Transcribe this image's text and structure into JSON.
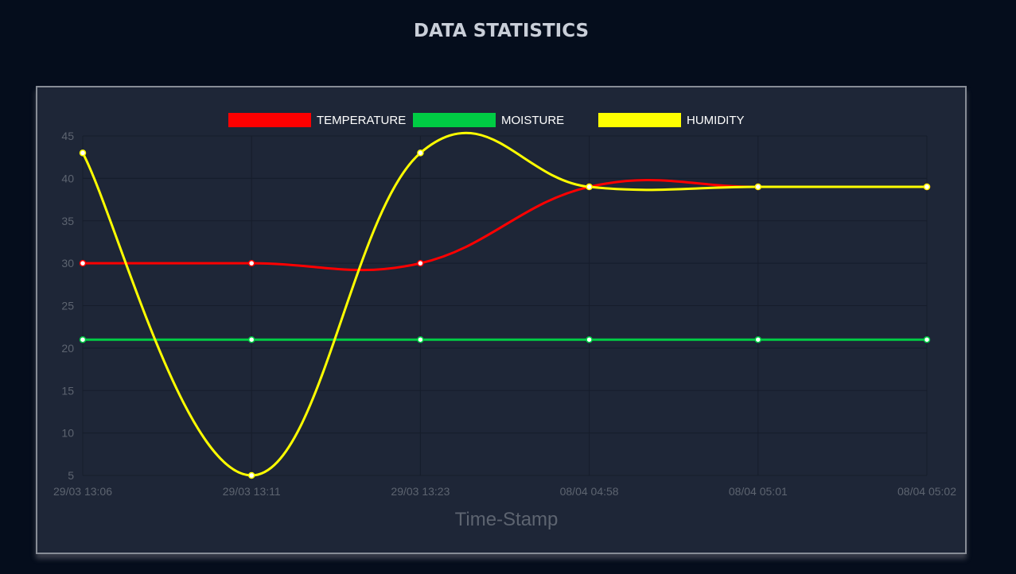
{
  "page": {
    "title": "DATA STATISTICS"
  },
  "colors": {
    "background": "#050d1c",
    "card": "#1e2637",
    "grid": "#161d2b",
    "tick_text": "#5d6470"
  },
  "chart_data": {
    "type": "line",
    "title": "",
    "xlabel": "Time-Stamp",
    "ylabel": "",
    "categories": [
      "29/03 13:06",
      "29/03 13:11",
      "29/03 13:23",
      "08/04 04:58",
      "08/04 05:01",
      "08/04 05:02"
    ],
    "ylim": [
      5,
      45
    ],
    "yticks": [
      5,
      10,
      15,
      20,
      25,
      30,
      35,
      40,
      45
    ],
    "grid": true,
    "legend_position": "top",
    "series": [
      {
        "name": "TEMPERATURE",
        "color": "#ff0000",
        "values": [
          30,
          30,
          30,
          39,
          39,
          39
        ]
      },
      {
        "name": "MOISTURE",
        "color": "#00cc44",
        "values": [
          21,
          21,
          21,
          21,
          21,
          21
        ]
      },
      {
        "name": "HUMIDITY",
        "color": "#ffff00",
        "values": [
          43,
          5,
          43,
          39,
          39,
          39
        ]
      }
    ]
  }
}
